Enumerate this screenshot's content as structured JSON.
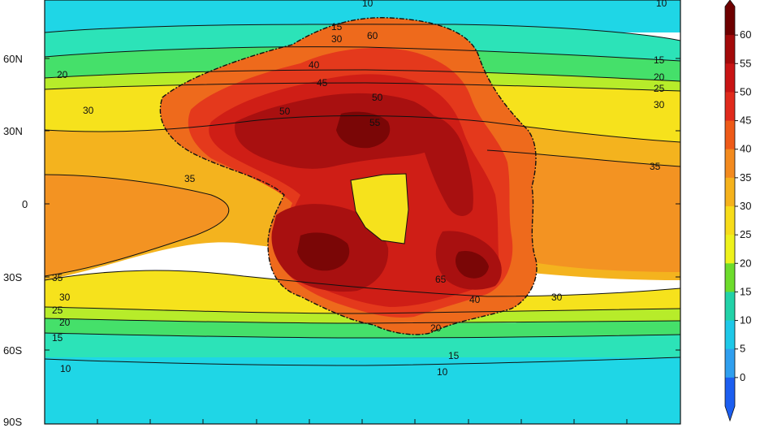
{
  "latitude_labels": [
    "60N",
    "30N",
    "0",
    "30S",
    "60S",
    "90S"
  ],
  "colorbar": {
    "ticks": [
      "60",
      "55",
      "50",
      "45",
      "40",
      "35",
      "30",
      "25",
      "20",
      "15",
      "10",
      "5",
      "0"
    ],
    "colors": [
      "#6e0000",
      "#a30a0a",
      "#c81414",
      "#e02a1c",
      "#ee5a18",
      "#f38a1e",
      "#f5b21c",
      "#f7dc1a",
      "#eef21c",
      "#6ddc2c",
      "#22d2a8",
      "#1ec8e8",
      "#2f9fef",
      "#1c5ef0"
    ]
  },
  "contour_labels": [
    "10",
    "15",
    "30",
    "60",
    "20",
    "25",
    "35",
    "40",
    "45",
    "50",
    "55",
    "65"
  ],
  "palette": {
    "band_10": "#1fd6e6",
    "band_15": "#2ce3b8",
    "band_20": "#45e06a",
    "band_25": "#b7ec2a",
    "band_30": "#f6e21c",
    "band_35": "#f4b31e",
    "ocean_35plus": "#f39322",
    "land_40": "#ee6a1c",
    "land_45": "#e4391c",
    "land_50": "#cf1e16",
    "land_55": "#a81010",
    "land_60": "#7a0606"
  }
}
